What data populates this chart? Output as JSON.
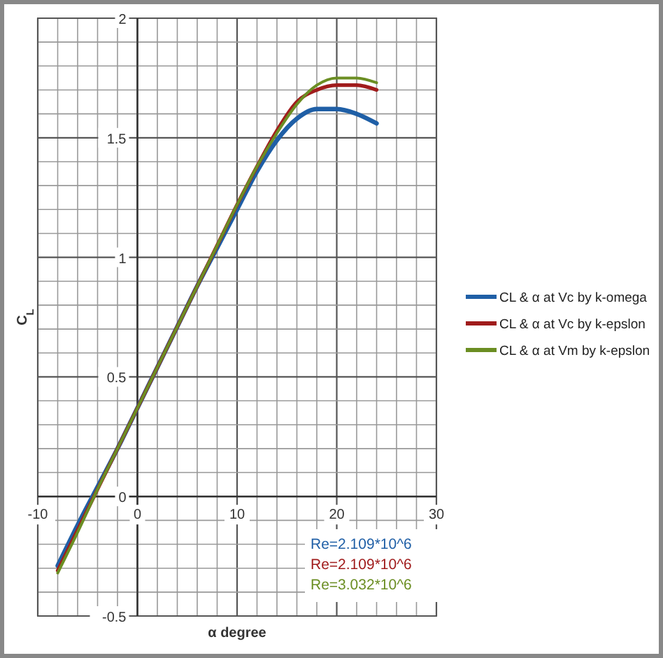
{
  "chart_data": {
    "type": "line",
    "xlabel": "α degree",
    "ylabel": "C$_{L}$",
    "x": [
      -8,
      -6,
      -4,
      -2,
      0,
      2,
      4,
      6,
      8,
      10,
      12,
      14,
      16,
      18,
      20,
      22,
      24
    ],
    "series": [
      {
        "name": "CL & α at Vc by k-omega",
        "color": "#1f5fa6",
        "values": [
          -0.29,
          -0.12,
          0.04,
          0.2,
          0.37,
          0.54,
          0.71,
          0.88,
          1.04,
          1.2,
          1.36,
          1.49,
          1.58,
          1.62,
          1.62,
          1.6,
          1.56
        ]
      },
      {
        "name": "CL & α at Vc by k-epslon",
        "color": "#a01c1c",
        "values": [
          -0.31,
          -0.14,
          0.03,
          0.2,
          0.37,
          0.54,
          0.71,
          0.88,
          1.05,
          1.22,
          1.38,
          1.53,
          1.65,
          1.7,
          1.72,
          1.72,
          1.7
        ]
      },
      {
        "name": "CL & α at Vm  by k-epslon",
        "color": "#6b8e23",
        "values": [
          -0.32,
          -0.15,
          0.03,
          0.2,
          0.37,
          0.54,
          0.71,
          0.88,
          1.05,
          1.22,
          1.38,
          1.52,
          1.64,
          1.72,
          1.75,
          1.75,
          1.73
        ]
      }
    ],
    "xlim": [
      -10,
      30
    ],
    "xticks": [
      -10,
      {
        "value": -8,
        "label": null
      },
      {
        "value": -6,
        "label": null
      },
      {
        "value": -4,
        "label": null
      },
      {
        "value": -2,
        "label": null
      },
      0,
      {
        "value": 2,
        "label": null
      },
      {
        "value": 4,
        "label": null
      },
      {
        "value": 6,
        "label": null
      },
      {
        "value": 8,
        "label": null
      },
      10,
      {
        "value": 12,
        "label": null
      },
      {
        "value": 14,
        "label": null
      },
      {
        "value": 16,
        "label": null
      },
      {
        "value": 18,
        "label": null
      },
      20,
      {
        "value": 22,
        "label": null
      },
      {
        "value": 24,
        "label": null
      },
      {
        "value": 26,
        "label": null
      },
      {
        "value": 28,
        "label": null
      },
      30
    ],
    "ylim": [
      -0.5,
      2
    ],
    "yticks": [
      -0.5,
      {
        "value": -0.4,
        "label": null
      },
      {
        "value": -0.3,
        "label": null
      },
      {
        "value": -0.2,
        "label": null
      },
      {
        "value": -0.1,
        "label": null
      },
      0,
      {
        "value": 0.1,
        "label": null
      },
      {
        "value": 0.2,
        "label": null
      },
      {
        "value": 0.3,
        "label": null
      },
      {
        "value": 0.4,
        "label": null
      },
      0.5,
      {
        "value": 0.6,
        "label": null
      },
      {
        "value": 0.7,
        "label": null
      },
      {
        "value": 0.8,
        "label": null
      },
      {
        "value": 0.9,
        "label": null
      },
      1,
      {
        "value": 1.1,
        "label": null
      },
      {
        "value": 1.2,
        "label": null
      },
      {
        "value": 1.3,
        "label": null
      },
      {
        "value": 1.4,
        "label": null
      },
      1.5,
      {
        "value": 1.6,
        "label": null
      },
      {
        "value": 1.7,
        "label": null
      },
      {
        "value": 1.8,
        "label": null
      },
      {
        "value": 1.9,
        "label": null
      },
      2
    ],
    "grid": true,
    "legend": "right",
    "marker": "none",
    "line_style": "solid",
    "annotations": [
      "Re=2.109*10^6",
      "Re=2.109*10^6",
      "Re=3.032*10^6"
    ]
  }
}
